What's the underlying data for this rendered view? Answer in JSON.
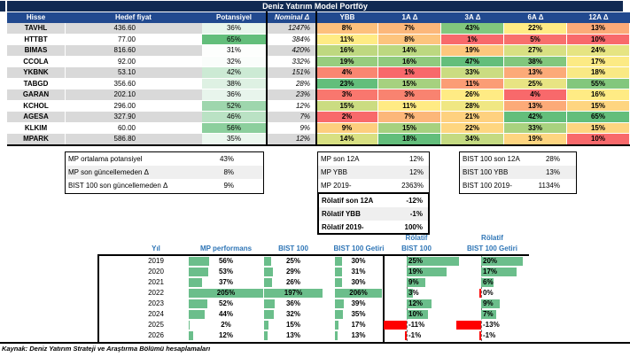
{
  "title": "Deniz Yatırım Model Portföy",
  "colors": {
    "title_bg": "#112A52",
    "header_bg": "#21498F",
    "band_gray": "#D9D9D9",
    "box_band": "#EFEFEF",
    "bar_green": "#6BBE8B",
    "bar_red": "#FE0000",
    "header_blue": "#2E75B6",
    "scale_red": "#F8696B",
    "scale_yellow": "#FFEB84",
    "scale_green": "#63BE7B"
  },
  "portfolio_table": {
    "columns": [
      "Hisse",
      "Hedef fiyat",
      "Potansiyel",
      "Nominal Δ",
      "YBB",
      "1A Δ",
      "3A Δ",
      "6A Δ",
      "12A Δ"
    ],
    "rows": [
      {
        "t": "TAVHL",
        "h": "436.60",
        "p": "36%",
        "pc": "#E8F5EC",
        "n": "1247%",
        "heat": [
          {
            "v": "8%",
            "c": "#FDC07C"
          },
          {
            "v": "7%",
            "c": "#FCB77A"
          },
          {
            "v": "43%",
            "c": "#81C77D"
          },
          {
            "v": "22%",
            "c": "#FFEB84"
          },
          {
            "v": "13%",
            "c": "#FCAA78"
          }
        ]
      },
      {
        "t": "HTTBT",
        "h": "77.00",
        "p": "65%",
        "pc": "#63BE7B",
        "n": "384%",
        "heat": [
          {
            "v": "11%",
            "c": "#FFEB84"
          },
          {
            "v": "8%",
            "c": "#FDC47D"
          },
          {
            "v": "1%",
            "c": "#F8696B"
          },
          {
            "v": "5%",
            "c": "#F8706C"
          },
          {
            "v": "10%",
            "c": "#F8696B"
          }
        ]
      },
      {
        "t": "BIMAS",
        "h": "816.60",
        "p": "31%",
        "pc": "#FDFEFD",
        "n": "420%",
        "heat": [
          {
            "v": "16%",
            "c": "#BED880"
          },
          {
            "v": "14%",
            "c": "#BCD880"
          },
          {
            "v": "19%",
            "c": "#FDC77D"
          },
          {
            "v": "27%",
            "c": "#D8E082"
          },
          {
            "v": "24%",
            "c": "#E6E482"
          }
        ]
      },
      {
        "t": "CCOLA",
        "h": "92.00",
        "p": "32%",
        "pc": "#FAFDFB",
        "n": "332%",
        "heat": [
          {
            "v": "19%",
            "c": "#97CD7E"
          },
          {
            "v": "16%",
            "c": "#90CB7E"
          },
          {
            "v": "47%",
            "c": "#63BE7B"
          },
          {
            "v": "38%",
            "c": "#82C77D"
          },
          {
            "v": "17%",
            "c": "#FCEA84"
          }
        ]
      },
      {
        "t": "YKBNK",
        "h": "53.10",
        "p": "42%",
        "pc": "#CCEAD4",
        "n": "151%",
        "heat": [
          {
            "v": "4%",
            "c": "#FA8671"
          },
          {
            "v": "1%",
            "c": "#F8696B"
          },
          {
            "v": "33%",
            "c": "#CBDC81"
          },
          {
            "v": "13%",
            "c": "#FCAA78"
          },
          {
            "v": "18%",
            "c": "#F9E984"
          }
        ]
      },
      {
        "t": "TABGD",
        "h": "356.60",
        "p": "38%",
        "pc": "#DEF1E3",
        "n": "28%",
        "heat": [
          {
            "v": "23%",
            "c": "#63BE7B"
          },
          {
            "v": "15%",
            "c": "#A6D17F"
          },
          {
            "v": "11%",
            "c": "#FB9D75"
          },
          {
            "v": "25%",
            "c": "#E8E483"
          },
          {
            "v": "55%",
            "c": "#83C77D"
          }
        ]
      },
      {
        "t": "GARAN",
        "h": "202.10",
        "p": "36%",
        "pc": "#E8F5EC",
        "n": "23%",
        "heat": [
          {
            "v": "3%",
            "c": "#F9776E"
          },
          {
            "v": "3%",
            "c": "#F98370"
          },
          {
            "v": "26%",
            "c": "#FFEB84"
          },
          {
            "v": "4%",
            "c": "#F8696B"
          },
          {
            "v": "16%",
            "c": "#FFEB84"
          }
        ]
      },
      {
        "t": "KCHOL",
        "h": "296.00",
        "p": "52%",
        "pc": "#9ED6AD",
        "n": "12%",
        "heat": [
          {
            "v": "15%",
            "c": "#CBDC81"
          },
          {
            "v": "11%",
            "c": "#FFEB84"
          },
          {
            "v": "28%",
            "c": "#F0E783"
          },
          {
            "v": "13%",
            "c": "#FCAA78"
          },
          {
            "v": "15%",
            "c": "#FED580"
          }
        ]
      },
      {
        "t": "AGESA",
        "h": "327.90",
        "p": "46%",
        "pc": "#BAE2C4",
        "n": "7%",
        "heat": [
          {
            "v": "2%",
            "c": "#F8696B"
          },
          {
            "v": "7%",
            "c": "#FCB77A"
          },
          {
            "v": "21%",
            "c": "#FED17F"
          },
          {
            "v": "42%",
            "c": "#63BE7B"
          },
          {
            "v": "65%",
            "c": "#63BE7B"
          }
        ]
      },
      {
        "t": "KLKIM",
        "h": "60.00",
        "p": "56%",
        "pc": "#8CCF9D",
        "n": "9%",
        "heat": [
          {
            "v": "9%",
            "c": "#FDCE7E"
          },
          {
            "v": "15%",
            "c": "#A6D17F"
          },
          {
            "v": "22%",
            "c": "#FED680"
          },
          {
            "v": "33%",
            "c": "#A9D27F"
          },
          {
            "v": "15%",
            "c": "#FED580"
          }
        ]
      },
      {
        "t": "MPARK",
        "h": "586.80",
        "p": "35%",
        "pc": "#ECF7EF",
        "n": "12%",
        "heat": [
          {
            "v": "14%",
            "c": "#D8E082"
          },
          {
            "v": "18%",
            "c": "#63BE7B"
          },
          {
            "v": "34%",
            "c": "#C4DA81"
          },
          {
            "v": "19%",
            "c": "#FED580"
          },
          {
            "v": "10%",
            "c": "#F8696B"
          }
        ]
      }
    ]
  },
  "summary_left": {
    "rows": [
      {
        "label": "MP ortalama potansiyel",
        "value": "43%"
      },
      {
        "label": "MP son güncellemeden Δ",
        "value": "8%"
      },
      {
        "label": "BIST 100 son güncellemeden Δ",
        "value": "9%"
      }
    ]
  },
  "summary_mid": {
    "rows": [
      {
        "label": "MP son 12A",
        "value": "12%"
      },
      {
        "label": "MP YBB",
        "value": "12%"
      },
      {
        "label": "MP 2019-",
        "value": "2363%"
      }
    ]
  },
  "summary_mid_bold": {
    "rows": [
      {
        "label": "Rölatif son 12A",
        "value": "-12%"
      },
      {
        "label": "Rölatif YBB",
        "value": "-1%"
      },
      {
        "label": "Rölatif 2019-",
        "value": "100%"
      }
    ]
  },
  "summary_right": {
    "rows": [
      {
        "label": "BIST 100 son 12A",
        "value": "28%"
      },
      {
        "label": "BIST 100 YBB",
        "value": "13%"
      },
      {
        "label": "BIST 100 2019-",
        "value": "1134%"
      }
    ]
  },
  "performance_table": {
    "headers": {
      "yil": "Yıl",
      "mp": "MP performans",
      "bist": "BIST 100",
      "getiri": "BIST 100 Getiri",
      "rel1_line1": "Rölatif",
      "rel1_line2": "BIST 100",
      "rel2_line1": "Rölatif",
      "rel2_line2": "BIST 100 Getiri"
    },
    "col_max": {
      "mp": 205,
      "bist": 197,
      "getiri": 206
    },
    "rows": [
      {
        "yil": "2019",
        "mp": 56,
        "bist": 25,
        "getiri": 30,
        "rel": 25,
        "rel_getiri": 20
      },
      {
        "yil": "2020",
        "mp": 53,
        "bist": 29,
        "getiri": 31,
        "rel": 19,
        "rel_getiri": 17
      },
      {
        "yil": "2021",
        "mp": 37,
        "bist": 26,
        "getiri": 30,
        "rel": 9,
        "rel_getiri": 6
      },
      {
        "yil": "2022",
        "mp": 205,
        "bist": 197,
        "getiri": 206,
        "rel": 3,
        "rel_getiri": 0
      },
      {
        "yil": "2023",
        "mp": 52,
        "bist": 36,
        "getiri": 39,
        "rel": 12,
        "rel_getiri": 9
      },
      {
        "yil": "2024",
        "mp": 44,
        "bist": 32,
        "getiri": 35,
        "rel": 10,
        "rel_getiri": 7
      },
      {
        "yil": "2025",
        "mp": 2,
        "bist": 15,
        "getiri": 17,
        "rel": -11,
        "rel_getiri": -13
      },
      {
        "yil": "2026",
        "mp": 12,
        "bist": 13,
        "getiri": 13,
        "rel": -1,
        "rel_getiri": -1
      }
    ]
  },
  "footer": "Kaynak: Deniz Yatırım Strateji ve Araştırma Bölümü hesaplamaları"
}
